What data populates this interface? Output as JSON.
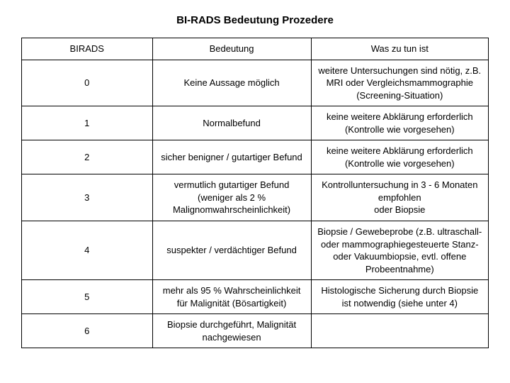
{
  "title": "BI-RADS Bedeutung  Prozedere",
  "table": {
    "columns": [
      "BIRADS",
      "Bedeutung",
      "Was zu tun ist"
    ],
    "rows": [
      {
        "code": "0",
        "meaning": "Keine Aussage möglich",
        "action": "weitere Untersuchungen sind nötig, z.B. MRI oder Vergleichsmammographie (Screening-Situation)"
      },
      {
        "code": "1",
        "meaning": "Normalbefund",
        "action": "keine weitere Abklärung erforderlich\n(Kontrolle wie vorgesehen)"
      },
      {
        "code": "2",
        "meaning": "sicher benigner / gutartiger Befund",
        "action": "keine weitere Abklärung erforderlich\n(Kontrolle wie vorgesehen)"
      },
      {
        "code": "3",
        "meaning": "vermutlich gutartiger Befund (weniger als 2 % Malignomwahrscheinlichkeit)",
        "action": "Kontrolluntersuchung in 3 - 6 Monaten empfohlen\noder Biopsie"
      },
      {
        "code": "4",
        "meaning": "suspekter / verdächtiger Befund",
        "action": "Biopsie / Gewebeprobe (z.B. ultraschall- oder mammographiegesteuerte Stanz- oder Vakuumbiopsie, evtl. offene Probeentnahme)"
      },
      {
        "code": "5",
        "meaning": "mehr als 95 % Wahrscheinlichkeit für Malignität (Bösartigkeit)",
        "action": "Histologische Sicherung durch Biopsie ist notwendig (siehe unter 4)"
      },
      {
        "code": "6",
        "meaning": "Biopsie durchgeführt, Malignität nachgewiesen",
        "action": ""
      }
    ]
  }
}
